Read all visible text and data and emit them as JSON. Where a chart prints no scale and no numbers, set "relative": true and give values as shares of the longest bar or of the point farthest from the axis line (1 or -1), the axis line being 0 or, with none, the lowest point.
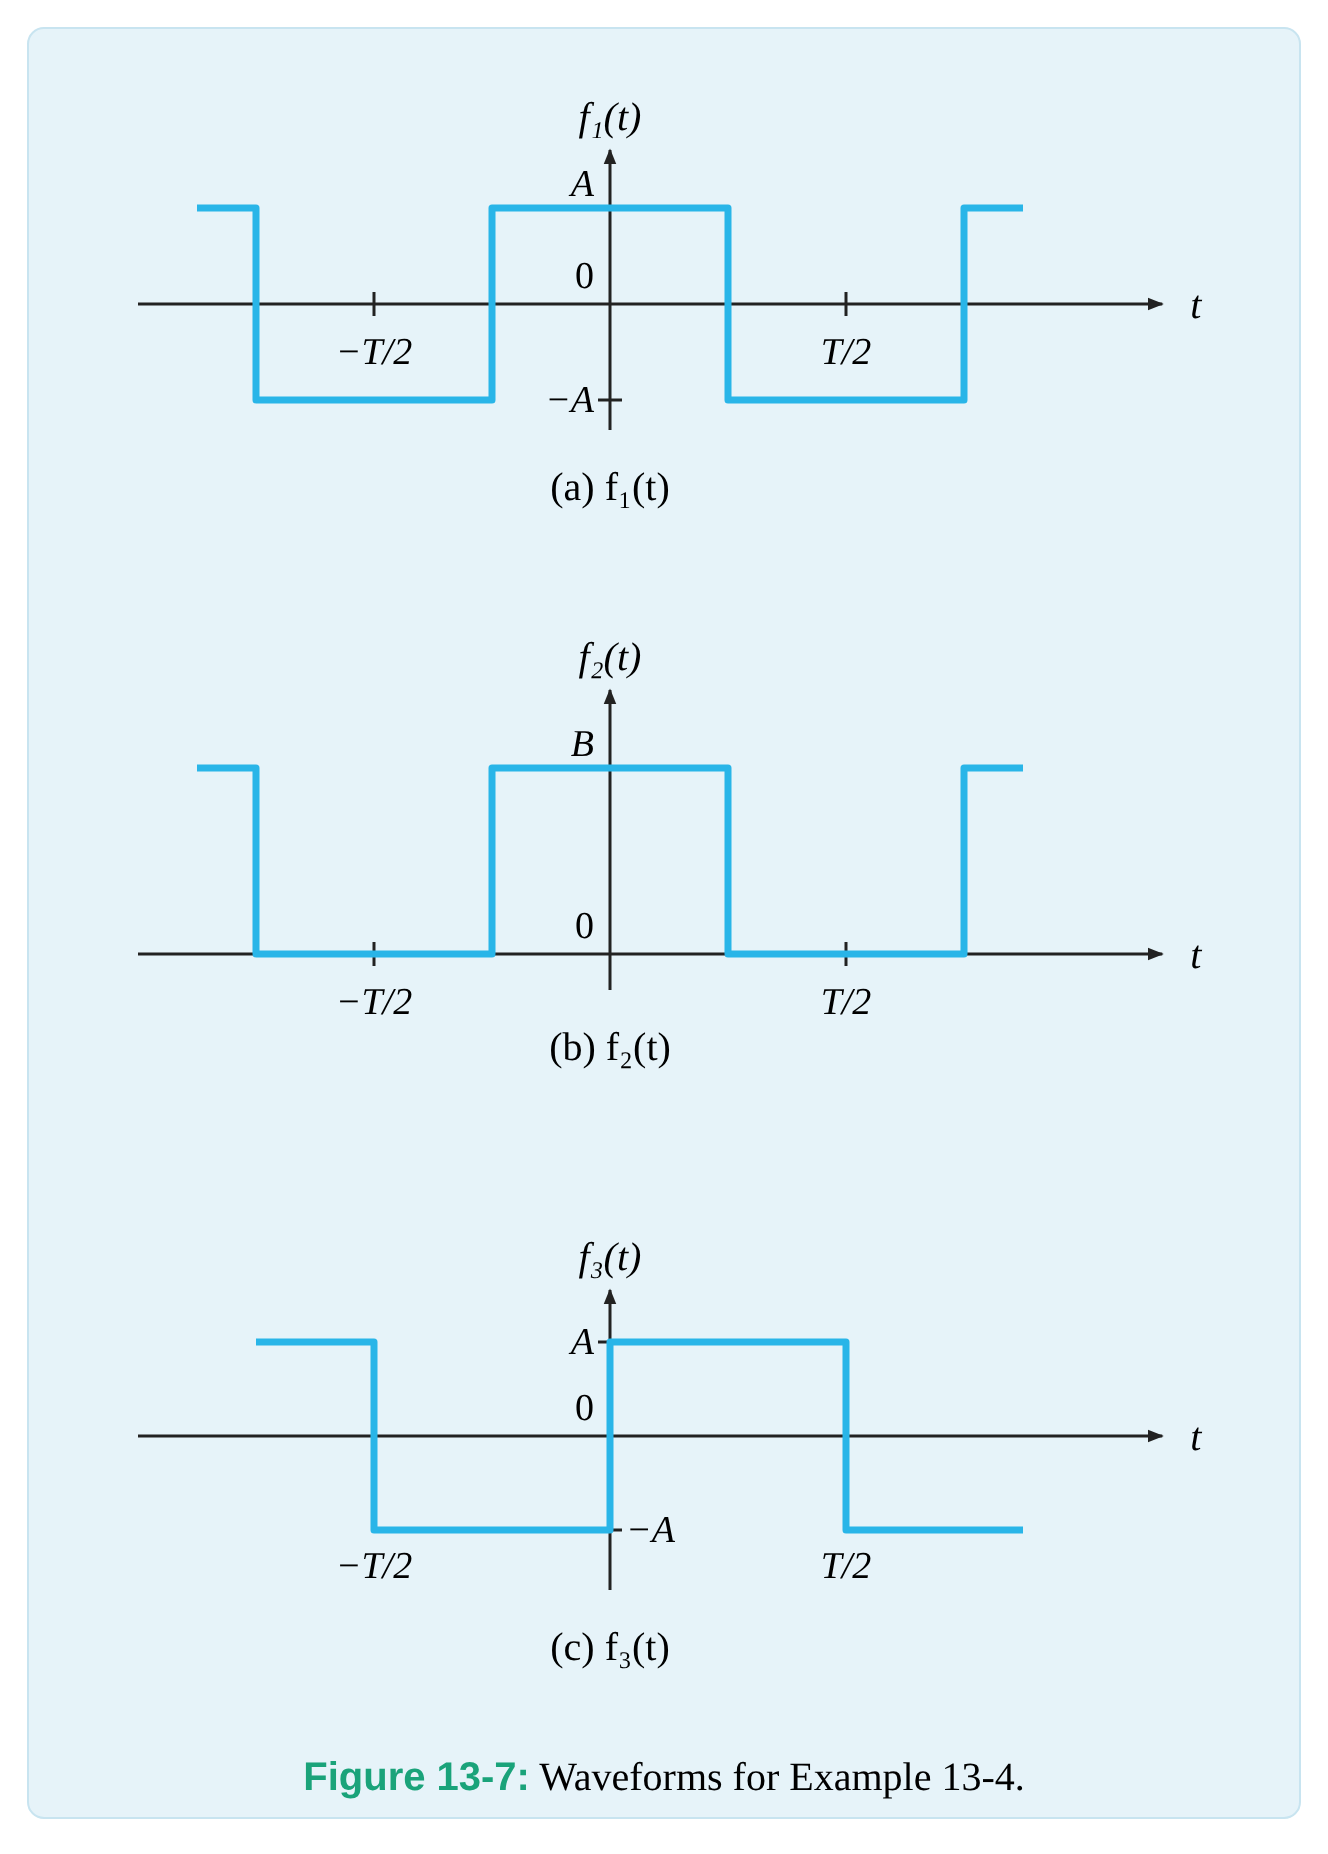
{
  "chart_data": [
    {
      "type": "step",
      "relative": true,
      "title": "(a) f₁(t)",
      "xlabel": "t",
      "ylabel": "f₁(t)",
      "categories": [
        null,
        null,
        null,
        "−T/2",
        null,
        null,
        null,
        null,
        null,
        null,
        null,
        "T/2",
        null,
        null,
        null
      ],
      "series": [
        {
          "color": "#29b5e8",
          "values": [
            1,
            -1,
            -1,
            -1,
            -1,
            1,
            1,
            1,
            1,
            -1,
            -1,
            -1,
            -1,
            1,
            1
          ]
        }
      ],
      "annotations": [
        "A",
        "0",
        "−A"
      ]
    },
    {
      "type": "step",
      "relative": true,
      "title": "(b) f₂(t)",
      "xlabel": "t",
      "ylabel": "f₂(t)",
      "categories": [
        null,
        null,
        null,
        "−T/2",
        null,
        null,
        null,
        null,
        null,
        null,
        null,
        "T/2",
        null,
        null,
        null
      ],
      "series": [
        {
          "color": "#29b5e8",
          "values": [
            1,
            0,
            0,
            0,
            0,
            1,
            1,
            1,
            1,
            0,
            0,
            0,
            0,
            1,
            1
          ]
        }
      ],
      "annotations": [
        "B",
        "0"
      ]
    },
    {
      "type": "step",
      "relative": true,
      "title": "(c) f₃(t)",
      "xlabel": "t",
      "ylabel": "f₃(t)",
      "categories": [
        null,
        null,
        "−T/2",
        null,
        null,
        null,
        null,
        null,
        null,
        null,
        "T/2",
        null,
        null,
        null
      ],
      "series": [
        {
          "color": "#29b5e8",
          "values": [
            1,
            1,
            -1,
            -1,
            -1,
            -1,
            1,
            1,
            1,
            1,
            -1,
            -1,
            -1,
            -1
          ]
        }
      ],
      "annotations": [
        "A",
        "0",
        "−A",
        "Figure 13-7: Waveforms for Example 13-4."
      ]
    }
  ]
}
